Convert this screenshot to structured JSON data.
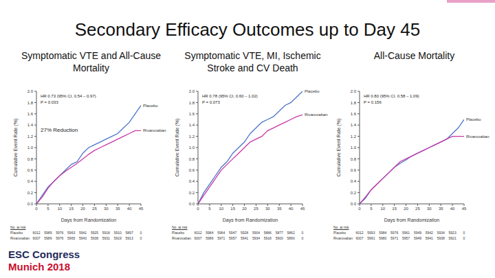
{
  "title": "Secondary Efficacy Outcomes up to Day 45",
  "footer": [
    "ESC Congress",
    "Munich 2018"
  ],
  "chart_data": [
    {
      "type": "line",
      "title": "Symptomatic VTE and All-Cause Mortality",
      "x_label": "Days from Randomization",
      "y_label": "Cumulative Event Rate (%)",
      "x": [
        0,
        2.5,
        5,
        7.5,
        10,
        12.5,
        15,
        17.5,
        20,
        22.5,
        25,
        27.5,
        30,
        32.5,
        35,
        37.5,
        40,
        42.5,
        45
      ],
      "xlim": [
        0,
        45
      ],
      "xticks": [
        0,
        5,
        10,
        15,
        20,
        25,
        30,
        35,
        40,
        45
      ],
      "ylim": [
        0,
        2
      ],
      "yticks": [
        {
          "value": 0,
          "label": "0.0"
        },
        0.2,
        0.4,
        0.6,
        0.8,
        {
          "value": 1,
          "label": "1.0"
        },
        1.2,
        1.4,
        1.6,
        1.8,
        {
          "value": 2,
          "label": "2.0"
        }
      ],
      "series": [
        {
          "name": "Placebo",
          "color": "#4a74c9",
          "values": [
            0,
            0.15,
            0.3,
            0.4,
            0.5,
            0.6,
            0.7,
            0.75,
            0.9,
            1.0,
            1.05,
            1.1,
            1.15,
            1.2,
            1.25,
            1.35,
            1.45,
            1.6,
            1.75
          ]
        },
        {
          "name": "Rivaroxaban",
          "color": "#c837a6",
          "values": [
            0,
            0.12,
            0.28,
            0.4,
            0.5,
            0.58,
            0.65,
            0.72,
            0.8,
            0.88,
            0.95,
            1.0,
            1.05,
            1.1,
            1.15,
            1.2,
            1.25,
            1.3,
            1.3
          ]
        }
      ],
      "annotations": [
        "HR 0.73 (95% CI, 0.54 – 0.97)",
        "P = 0.033",
        "27% Reduction"
      ],
      "number_at_risk": {
        "title": "No. at risk",
        "days": [
          0,
          5,
          10,
          15,
          20,
          25,
          30,
          35,
          40,
          45
        ],
        "rows": [
          {
            "name": "Placebo",
            "values": [
              6012,
              5989,
              5976,
              5963,
              5941,
              5925,
              5918,
              5910,
              5897,
              0
            ]
          },
          {
            "name": "Rivaroxaban",
            "values": [
              6007,
              5989,
              5976,
              5965,
              5943,
              5938,
              5931,
              5919,
              5913,
              0
            ]
          }
        ]
      }
    },
    {
      "type": "line",
      "title": "Symptomatic VTE, MI, Ischemic Stroke and CV Death",
      "x_label": "Days from Randomization",
      "y_label": "Cumulative Event Rate (%)",
      "x": [
        0,
        2.5,
        5,
        7.5,
        10,
        12.5,
        15,
        17.5,
        20,
        22.5,
        25,
        27.5,
        30,
        32.5,
        35,
        37.5,
        40,
        42.5,
        45
      ],
      "xlim": [
        0,
        45
      ],
      "xticks": [
        0,
        5,
        10,
        15,
        20,
        25,
        30,
        35,
        40,
        45
      ],
      "ylim": [
        0,
        2
      ],
      "yticks": [
        {
          "value": 0,
          "label": "0.0"
        },
        0.2,
        0.4,
        0.6,
        0.8,
        {
          "value": 1,
          "label": "1.0"
        },
        1.2,
        1.4,
        1.6,
        1.8,
        {
          "value": 2,
          "label": "2.0"
        }
      ],
      "series": [
        {
          "name": "Placebo",
          "color": "#4a74c9",
          "values": [
            0,
            0.2,
            0.35,
            0.5,
            0.65,
            0.75,
            0.9,
            1.0,
            1.1,
            1.25,
            1.35,
            1.45,
            1.5,
            1.55,
            1.65,
            1.75,
            1.8,
            1.9,
            2.0
          ]
        },
        {
          "name": "Rivaroxaban",
          "color": "#c837a6",
          "values": [
            0,
            0.15,
            0.3,
            0.45,
            0.6,
            0.7,
            0.8,
            0.9,
            1.0,
            1.1,
            1.15,
            1.2,
            1.3,
            1.35,
            1.4,
            1.45,
            1.5,
            1.55,
            1.58
          ]
        }
      ],
      "annotations": [
        "HR 0.78 (95% CI, 0.60 – 1.02)",
        "P = 0.073"
      ],
      "number_at_risk": {
        "title": "No. at risk",
        "days": [
          0,
          5,
          10,
          15,
          20,
          25,
          30,
          35,
          40,
          45
        ],
        "rows": [
          {
            "name": "Placebo",
            "values": [
              6012,
              5984,
              5964,
              5947,
              5928,
              5904,
              5886,
              5877,
              5862,
              0
            ]
          },
          {
            "name": "Rivaroxaban",
            "values": [
              6007,
              5986,
              5971,
              5957,
              5941,
              5934,
              5918,
              5900,
              5890,
              0
            ]
          }
        ]
      }
    },
    {
      "type": "line",
      "title": "All-Cause Mortality",
      "x_label": "Days from Randomization",
      "y_label": "Cumulative Event Rate (%)",
      "x": [
        0,
        2.5,
        5,
        7.5,
        10,
        12.5,
        15,
        17.5,
        20,
        22.5,
        25,
        27.5,
        30,
        32.5,
        35,
        37.5,
        40,
        42.5,
        45
      ],
      "xlim": [
        0,
        45
      ],
      "xticks": [
        0,
        5,
        10,
        15,
        20,
        25,
        30,
        35,
        40,
        45
      ],
      "ylim": [
        0,
        2
      ],
      "yticks": [
        {
          "value": 0,
          "label": "0.0"
        },
        0.2,
        0.4,
        0.6,
        0.8,
        {
          "value": 1,
          "label": "1.0"
        },
        1.2,
        1.4,
        1.6,
        1.8,
        {
          "value": 2,
          "label": "2.0"
        }
      ],
      "series": [
        {
          "name": "Placebo",
          "color": "#4a74c9",
          "values": [
            0,
            0.1,
            0.25,
            0.35,
            0.45,
            0.55,
            0.65,
            0.72,
            0.78,
            0.85,
            0.9,
            0.95,
            1.0,
            1.05,
            1.1,
            1.15,
            1.25,
            1.35,
            1.5
          ]
        },
        {
          "name": "Rivaroxaban",
          "color": "#c837a6",
          "values": [
            0,
            0.12,
            0.25,
            0.35,
            0.45,
            0.55,
            0.65,
            0.75,
            0.8,
            0.85,
            0.9,
            0.95,
            1.0,
            1.05,
            1.1,
            1.15,
            1.2,
            1.2,
            1.2
          ]
        }
      ],
      "annotations": [
        "HR 0.80 (95% CI, 0.58 – 1.09)",
        "P = 0.156"
      ],
      "number_at_risk": {
        "title": "No. at risk",
        "days": [
          0,
          5,
          10,
          15,
          20,
          25,
          30,
          35,
          40,
          45
        ],
        "rows": [
          {
            "name": "Placebo",
            "values": [
              6012,
              5993,
              5984,
              5976,
              5961,
              5949,
              5942,
              5934,
              5923,
              0
            ]
          },
          {
            "name": "Rivaroxaban",
            "values": [
              6007,
              5991,
              5980,
              5971,
              5957,
              5949,
              5941,
              5938,
              5921,
              0
            ]
          }
        ]
      }
    }
  ]
}
